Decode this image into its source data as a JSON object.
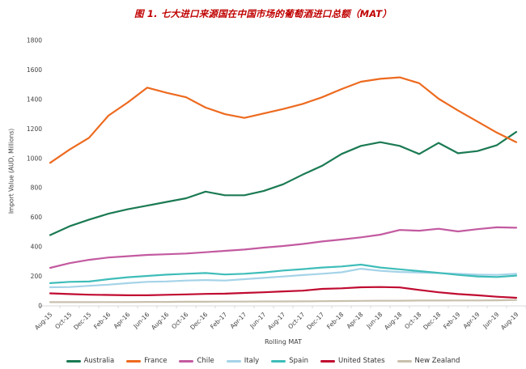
{
  "figure": {
    "title_color": "#C00000",
    "axis_line_color": "#D9D9D9",
    "tick_label_color": "#404040"
  },
  "chart_data": {
    "type": "line",
    "title": "图 1. 七大进口来源国在中国市场的葡萄酒进口总额（MAT）",
    "xlabel": "Rolling MAT",
    "ylabel": "Import Value (AUD, Millions)",
    "ylim": [
      0,
      1800
    ],
    "ytick_step": 200,
    "yticks": [
      0,
      200,
      400,
      600,
      800,
      1000,
      1200,
      1400,
      1600,
      1800
    ],
    "grid": false,
    "legend_position": "bottom",
    "categories": [
      "Aug-15",
      "Oct-15",
      "Dec-15",
      "Feb-16",
      "Apr-16",
      "Jun-16",
      "Aug-16",
      "Oct-16",
      "Dec-16",
      "Feb-17",
      "Apr-17",
      "Jun-17",
      "Aug-17",
      "Oct-17",
      "Dec-17",
      "Feb-18",
      "Apr-18",
      "Jun-18",
      "Aug-18",
      "Oct-18",
      "Dec-18",
      "Feb-19",
      "Apr-19",
      "Jun-19",
      "Aug-19"
    ],
    "series": [
      {
        "name": "Australia",
        "color": "#1B7A53",
        "values": [
          480,
          540,
          585,
          625,
          655,
          680,
          705,
          730,
          775,
          750,
          750,
          780,
          825,
          890,
          950,
          1030,
          1085,
          1110,
          1085,
          1030,
          1105,
          1035,
          1050,
          1090,
          1180
        ]
      },
      {
        "name": "France",
        "color": "#ED6A1F",
        "values": [
          970,
          1060,
          1140,
          1290,
          1380,
          1480,
          1445,
          1415,
          1345,
          1300,
          1275,
          1305,
          1335,
          1370,
          1415,
          1470,
          1520,
          1540,
          1550,
          1510,
          1405,
          1325,
          1250,
          1175,
          1110
        ]
      },
      {
        "name": "Chile",
        "color": "#C35AA0",
        "values": [
          258,
          290,
          312,
          328,
          337,
          346,
          350,
          355,
          364,
          373,
          382,
          395,
          406,
          420,
          437,
          450,
          465,
          483,
          515,
          510,
          523,
          505,
          520,
          533,
          530
        ]
      },
      {
        "name": "Italy",
        "color": "#A5D3E8",
        "values": [
          126,
          128,
          136,
          144,
          154,
          163,
          166,
          172,
          175,
          172,
          181,
          190,
          199,
          209,
          218,
          228,
          252,
          238,
          230,
          226,
          222,
          218,
          212,
          210,
          218
        ]
      },
      {
        "name": "Spain",
        "color": "#3FBDB9",
        "values": [
          154,
          163,
          165,
          181,
          194,
          203,
          212,
          218,
          223,
          213,
          218,
          227,
          240,
          249,
          260,
          267,
          280,
          260,
          248,
          236,
          224,
          210,
          200,
          196,
          205
        ]
      },
      {
        "name": "United States",
        "color": "#C00A30",
        "values": [
          85,
          80,
          76,
          74,
          72,
          72,
          75,
          78,
          81,
          83,
          88,
          92,
          98,
          103,
          115,
          119,
          126,
          128,
          125,
          108,
          92,
          80,
          72,
          62,
          55
        ]
      },
      {
        "name": "New Zealand",
        "color": "#C9C0AD",
        "values": [
          25,
          25,
          25,
          26,
          26,
          27,
          27,
          28,
          28,
          29,
          29,
          30,
          30,
          31,
          32,
          33,
          34,
          35,
          35,
          36,
          36,
          37,
          37,
          38,
          40
        ]
      }
    ],
    "legend_order": [
      "Australia",
      "France",
      "Chile",
      "Italy",
      "Spain",
      "United States",
      "New Zealand"
    ]
  }
}
